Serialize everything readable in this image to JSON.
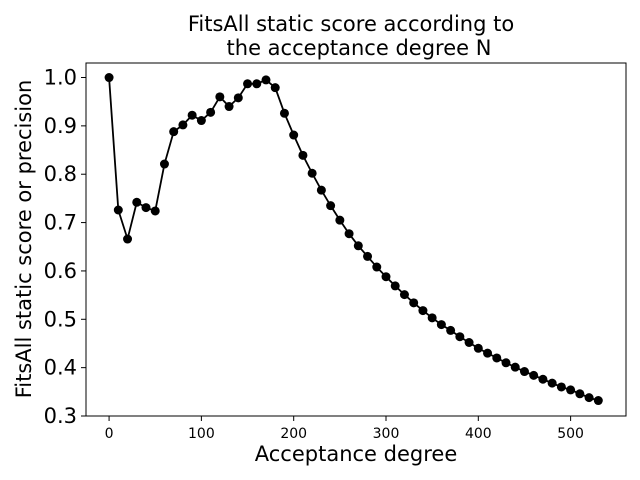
{
  "chart_data": {
    "type": "line",
    "title_lines": [
      "FitsAll static score according to",
      "the acceptance degree N"
    ],
    "xlabel": "Acceptance degree",
    "ylabel": "FitsAll static score or precision",
    "xlim": [
      -25,
      560
    ],
    "ylim": [
      0.3,
      1.03
    ],
    "xticks": [
      0,
      100,
      200,
      300,
      400,
      500
    ],
    "yticks": [
      0.3,
      0.4,
      0.5,
      0.6,
      0.7,
      0.8,
      0.9,
      1.0
    ],
    "ytick_labels": [
      "0.3",
      "0.4",
      "0.5",
      "0.6",
      "0.7",
      "0.8",
      "0.9",
      "1.0"
    ],
    "grid": false,
    "series": [
      {
        "color": "#000000",
        "marker": "circle",
        "x": [
          0,
          10,
          20,
          30,
          40,
          50,
          60,
          70,
          80,
          90,
          100,
          110,
          120,
          130,
          140,
          150,
          160,
          170,
          180,
          190,
          200,
          210,
          220,
          230,
          240,
          250,
          260,
          270,
          280,
          290,
          300,
          310,
          320,
          330,
          340,
          350,
          360,
          370,
          380,
          390,
          400,
          410,
          420,
          430,
          440,
          450,
          460,
          470,
          480,
          490,
          500,
          510,
          520,
          530
        ],
        "y": [
          1.0,
          0.726,
          0.666,
          0.742,
          0.731,
          0.724,
          0.821,
          0.888,
          0.902,
          0.922,
          0.911,
          0.928,
          0.96,
          0.94,
          0.958,
          0.987,
          0.987,
          0.995,
          0.979,
          0.926,
          0.881,
          0.839,
          0.802,
          0.767,
          0.735,
          0.705,
          0.677,
          0.652,
          0.63,
          0.608,
          0.588,
          0.569,
          0.551,
          0.534,
          0.518,
          0.503,
          0.489,
          0.477,
          0.464,
          0.452,
          0.44,
          0.43,
          0.42,
          0.41,
          0.401,
          0.392,
          0.384,
          0.376,
          0.368,
          0.36,
          0.354,
          0.346,
          0.338,
          0.332
        ]
      }
    ]
  }
}
